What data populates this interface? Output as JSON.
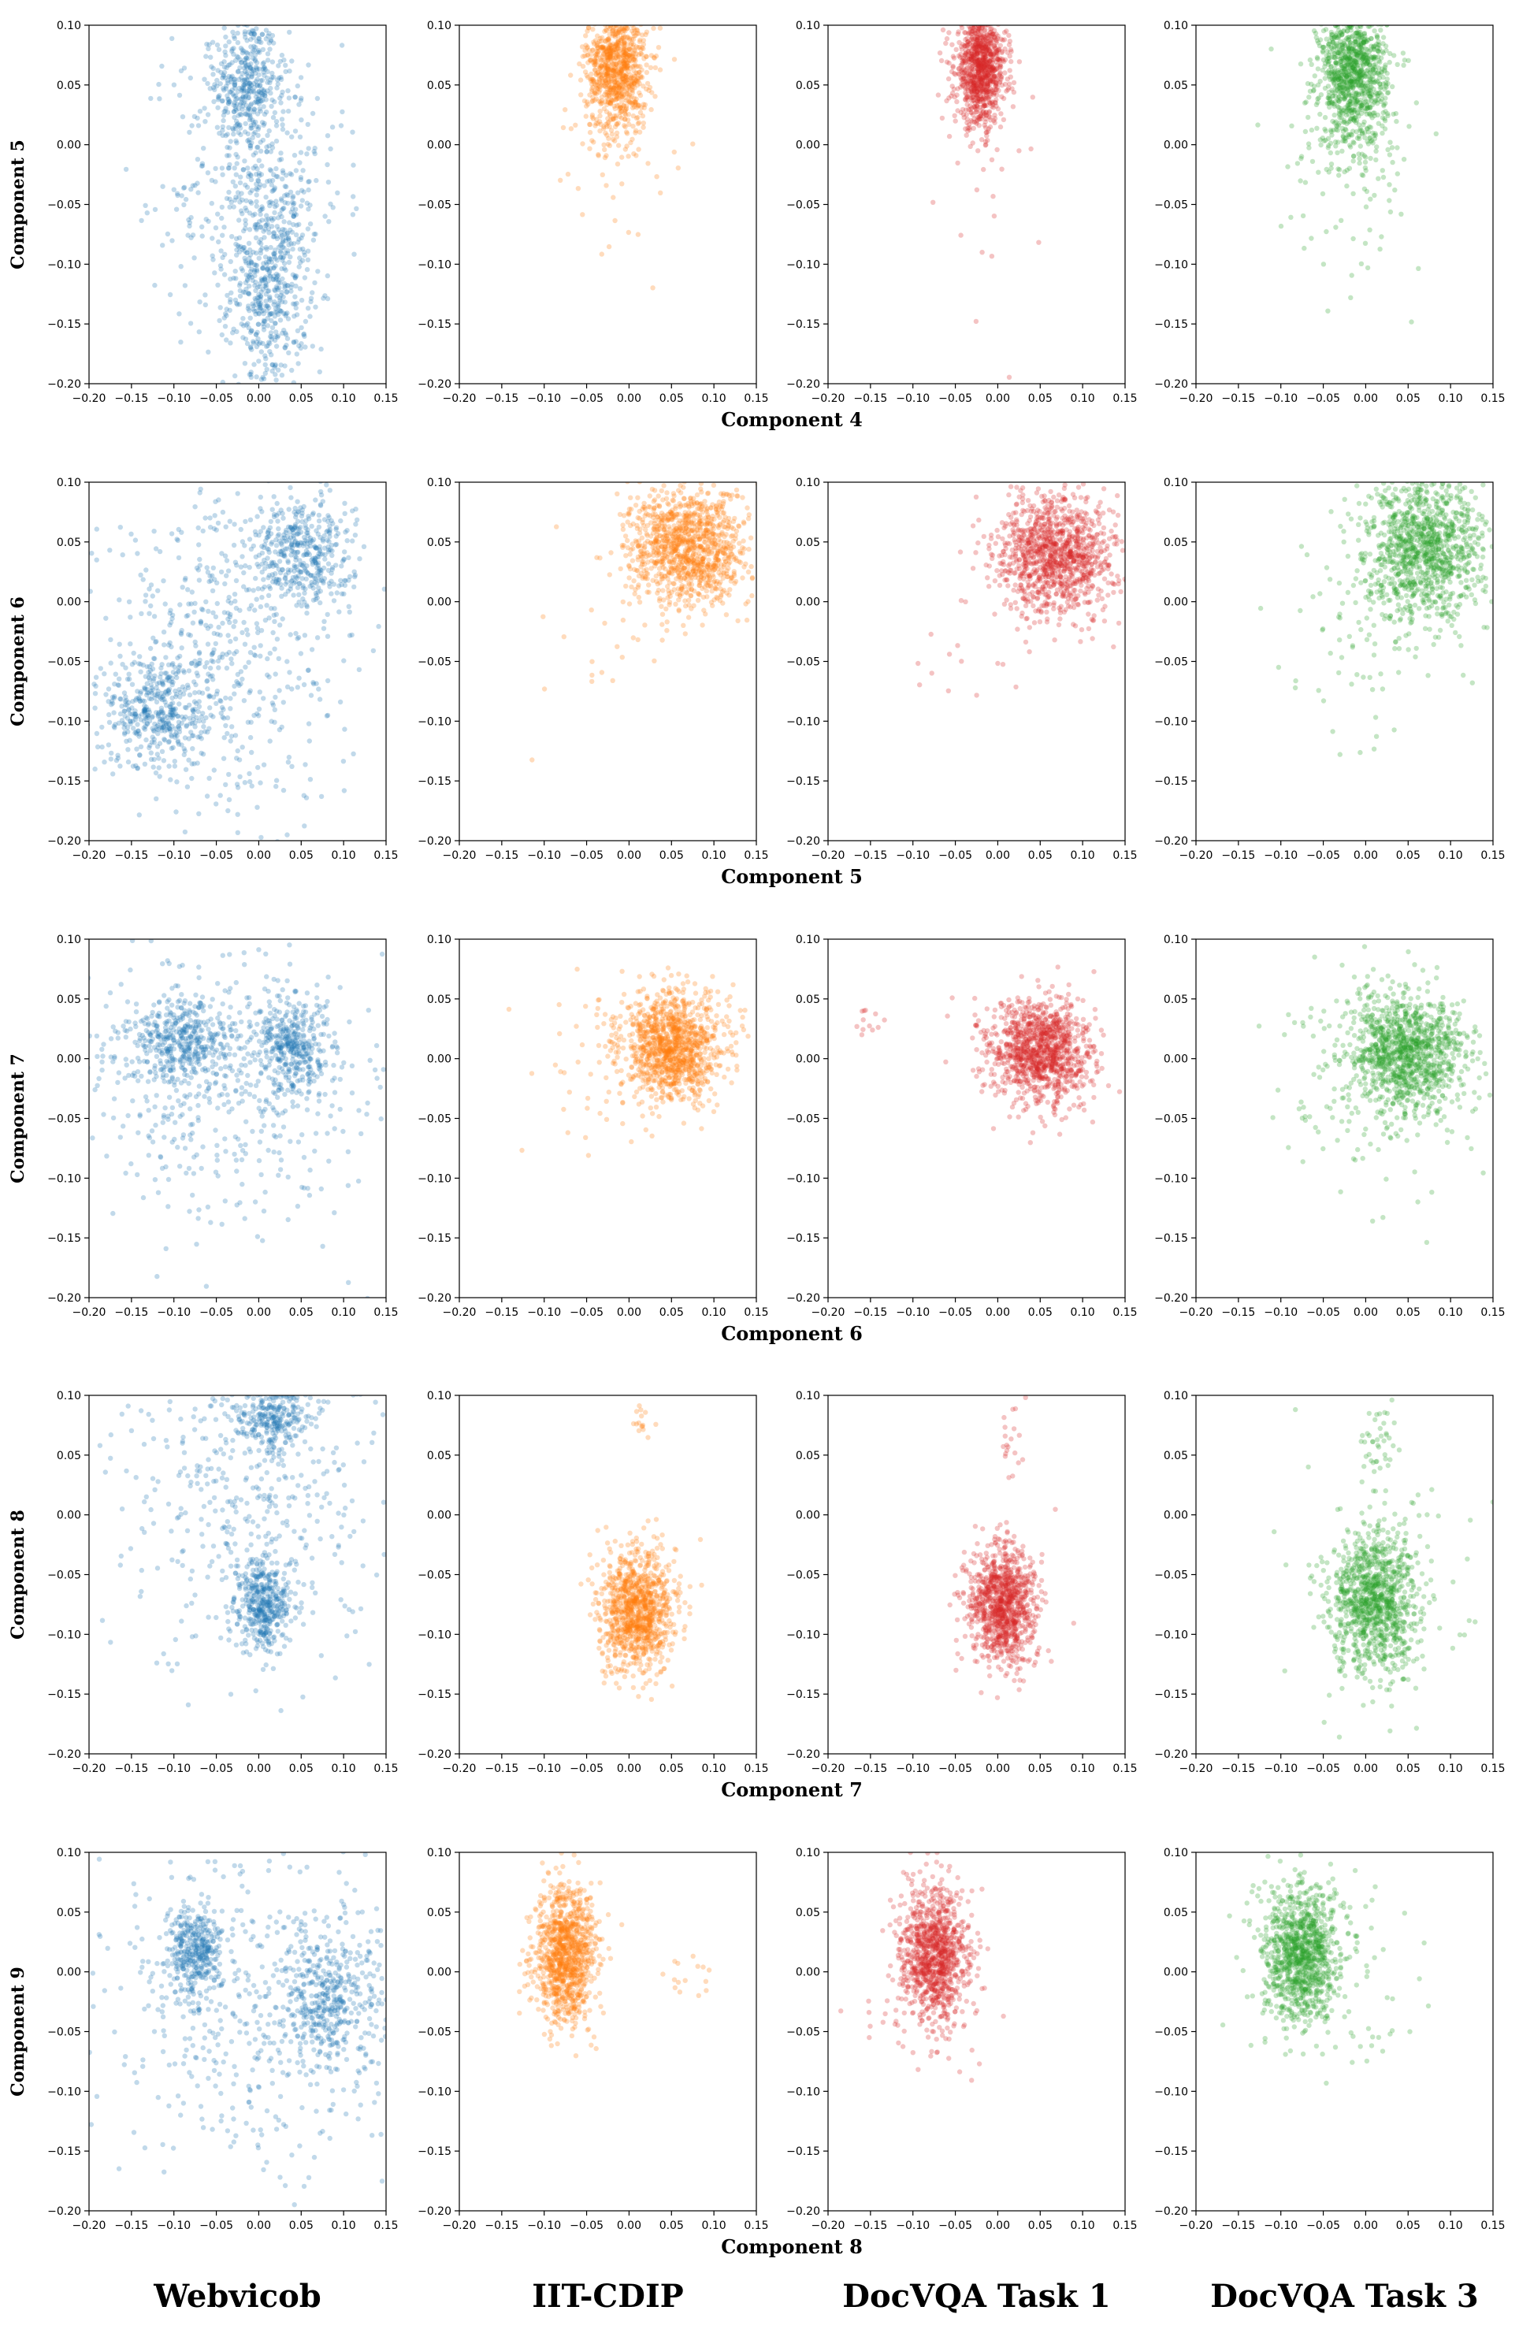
{
  "figure": {
    "column_titles": [
      "Webvicob",
      "IIT-CDIP",
      "DocVQA Task 1",
      "DocVQA Task 3"
    ],
    "colors": {
      "Webvicob": "#1f77b4",
      "IIT-CDIP": "#ff7f0e",
      "DocVQA Task 1": "#d62728",
      "DocVQA Task 3": "#2ca02c"
    }
  },
  "chart_data": {
    "type": "scatter",
    "xlim": [
      -0.2,
      0.15
    ],
    "ylim": [
      -0.2,
      0.1
    ],
    "xticks": [
      -0.2,
      -0.15,
      -0.1,
      -0.05,
      0.0,
      0.05,
      0.1,
      0.15
    ],
    "yticks": [
      -0.2,
      -0.15,
      -0.1,
      -0.05,
      0.0,
      0.05,
      0.1
    ],
    "xtick_labels": [
      "−0.20",
      "−0.15",
      "−0.10",
      "−0.05",
      "0.00",
      "0.05",
      "0.10",
      "0.15"
    ],
    "ytick_labels": [
      "−0.20",
      "−0.15",
      "−0.10",
      "−0.05",
      "0.00",
      "0.05",
      "0.10"
    ],
    "rows": [
      {
        "xlabel": "Component 4",
        "ylabel": "Component 5",
        "panels": [
          {
            "dataset": "Webvicob",
            "clusters": [
              {
                "cx": -0.015,
                "cy": 0.05,
                "sx": 0.018,
                "sy": 0.03,
                "n": 350
              },
              {
                "cx": 0.012,
                "cy": -0.12,
                "sx": 0.022,
                "sy": 0.045,
                "n": 420
              },
              {
                "cx": 0.0,
                "cy": -0.04,
                "sx": 0.05,
                "sy": 0.08,
                "n": 520
              }
            ]
          },
          {
            "dataset": "IIT-CDIP",
            "clusters": [
              {
                "cx": -0.015,
                "cy": 0.065,
                "sx": 0.018,
                "sy": 0.028,
                "n": 900
              },
              {
                "cx": -0.01,
                "cy": 0.0,
                "sx": 0.04,
                "sy": 0.06,
                "n": 40
              }
            ]
          },
          {
            "dataset": "DocVQA Task 1",
            "clusters": [
              {
                "cx": -0.02,
                "cy": 0.065,
                "sx": 0.015,
                "sy": 0.025,
                "n": 1000
              },
              {
                "cx": -0.01,
                "cy": 0.0,
                "sx": 0.03,
                "sy": 0.07,
                "n": 25
              }
            ]
          },
          {
            "dataset": "DocVQA Task 3",
            "clusters": [
              {
                "cx": -0.015,
                "cy": 0.06,
                "sx": 0.02,
                "sy": 0.03,
                "n": 1000
              },
              {
                "cx": -0.01,
                "cy": 0.0,
                "sx": 0.04,
                "sy": 0.05,
                "n": 120
              }
            ]
          }
        ]
      },
      {
        "xlabel": "Component 5",
        "ylabel": "Component 6",
        "panels": [
          {
            "dataset": "Webvicob",
            "clusters": [
              {
                "cx": 0.05,
                "cy": 0.04,
                "sx": 0.03,
                "sy": 0.025,
                "n": 420
              },
              {
                "cx": -0.12,
                "cy": -0.09,
                "sx": 0.03,
                "sy": 0.025,
                "n": 380
              },
              {
                "cx": -0.05,
                "cy": -0.04,
                "sx": 0.07,
                "sy": 0.07,
                "n": 520
              }
            ]
          },
          {
            "dataset": "IIT-CDIP",
            "clusters": [
              {
                "cx": 0.07,
                "cy": 0.045,
                "sx": 0.035,
                "sy": 0.025,
                "n": 1100
              },
              {
                "cx": 0.0,
                "cy": -0.03,
                "sx": 0.06,
                "sy": 0.04,
                "n": 25
              }
            ]
          },
          {
            "dataset": "DocVQA Task 1",
            "clusters": [
              {
                "cx": 0.07,
                "cy": 0.04,
                "sx": 0.035,
                "sy": 0.025,
                "n": 1100
              },
              {
                "cx": -0.06,
                "cy": -0.05,
                "sx": 0.05,
                "sy": 0.03,
                "n": 15
              }
            ]
          },
          {
            "dataset": "DocVQA Task 3",
            "clusters": [
              {
                "cx": 0.07,
                "cy": 0.045,
                "sx": 0.035,
                "sy": 0.03,
                "n": 1100
              },
              {
                "cx": 0.0,
                "cy": -0.03,
                "sx": 0.05,
                "sy": 0.04,
                "n": 90
              }
            ]
          }
        ]
      },
      {
        "xlabel": "Component 6",
        "ylabel": "Component 7",
        "panels": [
          {
            "dataset": "Webvicob",
            "clusters": [
              {
                "cx": -0.09,
                "cy": 0.015,
                "sx": 0.03,
                "sy": 0.02,
                "n": 400
              },
              {
                "cx": 0.04,
                "cy": 0.01,
                "sx": 0.02,
                "sy": 0.02,
                "n": 350
              },
              {
                "cx": -0.03,
                "cy": -0.02,
                "sx": 0.1,
                "sy": 0.06,
                "n": 500
              }
            ]
          },
          {
            "dataset": "IIT-CDIP",
            "clusters": [
              {
                "cx": 0.05,
                "cy": 0.01,
                "sx": 0.03,
                "sy": 0.022,
                "n": 1100
              },
              {
                "cx": 0.0,
                "cy": 0.0,
                "sx": 0.06,
                "sy": 0.04,
                "n": 60
              }
            ]
          },
          {
            "dataset": "DocVQA Task 1",
            "clusters": [
              {
                "cx": 0.05,
                "cy": 0.005,
                "sx": 0.03,
                "sy": 0.022,
                "n": 1100
              },
              {
                "cx": -0.15,
                "cy": 0.03,
                "sx": 0.01,
                "sy": 0.008,
                "n": 12
              }
            ]
          },
          {
            "dataset": "DocVQA Task 3",
            "clusters": [
              {
                "cx": 0.05,
                "cy": 0.005,
                "sx": 0.035,
                "sy": 0.025,
                "n": 1100
              },
              {
                "cx": 0.0,
                "cy": -0.02,
                "sx": 0.07,
                "sy": 0.05,
                "n": 120
              }
            ]
          }
        ]
      },
      {
        "xlabel": "Component 7",
        "ylabel": "Component 8",
        "panels": [
          {
            "dataset": "Webvicob",
            "clusters": [
              {
                "cx": 0.015,
                "cy": 0.085,
                "sx": 0.02,
                "sy": 0.015,
                "n": 300
              },
              {
                "cx": 0.005,
                "cy": -0.075,
                "sx": 0.015,
                "sy": 0.02,
                "n": 400
              },
              {
                "cx": -0.01,
                "cy": 0.02,
                "sx": 0.08,
                "sy": 0.07,
                "n": 450
              }
            ]
          },
          {
            "dataset": "IIT-CDIP",
            "clusters": [
              {
                "cx": 0.01,
                "cy": -0.08,
                "sx": 0.022,
                "sy": 0.025,
                "n": 1000
              },
              {
                "cx": 0.015,
                "cy": 0.08,
                "sx": 0.007,
                "sy": 0.008,
                "n": 15
              }
            ]
          },
          {
            "dataset": "DocVQA Task 1",
            "clusters": [
              {
                "cx": 0.005,
                "cy": -0.075,
                "sx": 0.02,
                "sy": 0.025,
                "n": 1000
              },
              {
                "cx": 0.015,
                "cy": 0.06,
                "sx": 0.008,
                "sy": 0.02,
                "n": 20
              }
            ]
          },
          {
            "dataset": "DocVQA Task 3",
            "clusters": [
              {
                "cx": 0.01,
                "cy": -0.075,
                "sx": 0.025,
                "sy": 0.03,
                "n": 1000
              },
              {
                "cx": 0.015,
                "cy": 0.06,
                "sx": 0.01,
                "sy": 0.02,
                "n": 40
              },
              {
                "cx": 0.0,
                "cy": -0.06,
                "sx": 0.06,
                "sy": 0.05,
                "n": 80
              }
            ]
          }
        ]
      },
      {
        "xlabel": "Component 8",
        "ylabel": "Component 9",
        "panels": [
          {
            "dataset": "Webvicob",
            "clusters": [
              {
                "cx": -0.075,
                "cy": 0.015,
                "sx": 0.015,
                "sy": 0.02,
                "n": 350
              },
              {
                "cx": 0.08,
                "cy": -0.025,
                "sx": 0.03,
                "sy": 0.03,
                "n": 400
              },
              {
                "cx": 0.0,
                "cy": -0.03,
                "sx": 0.09,
                "sy": 0.07,
                "n": 450
              }
            ]
          },
          {
            "dataset": "IIT-CDIP",
            "clusters": [
              {
                "cx": -0.075,
                "cy": 0.015,
                "sx": 0.018,
                "sy": 0.028,
                "n": 1000
              },
              {
                "cx": 0.07,
                "cy": -0.005,
                "sx": 0.015,
                "sy": 0.01,
                "n": 15
              }
            ]
          },
          {
            "dataset": "DocVQA Task 1",
            "clusters": [
              {
                "cx": -0.075,
                "cy": 0.015,
                "sx": 0.02,
                "sy": 0.028,
                "n": 1000
              },
              {
                "cx": -0.1,
                "cy": -0.04,
                "sx": 0.05,
                "sy": 0.03,
                "n": 30
              }
            ]
          },
          {
            "dataset": "DocVQA Task 3",
            "clusters": [
              {
                "cx": -0.075,
                "cy": 0.015,
                "sx": 0.022,
                "sy": 0.028,
                "n": 1000
              },
              {
                "cx": -0.05,
                "cy": -0.01,
                "sx": 0.06,
                "sy": 0.04,
                "n": 90
              }
            ]
          }
        ]
      }
    ]
  }
}
